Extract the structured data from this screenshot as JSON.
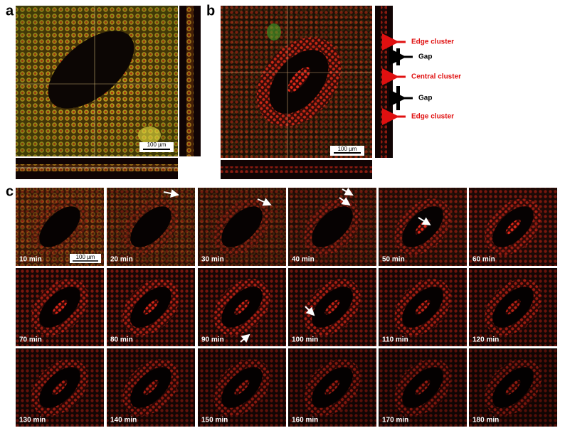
{
  "panels": {
    "a": {
      "label": "a",
      "scale_bar": "100 µm"
    },
    "b": {
      "label": "b",
      "scale_bar": "100 µm",
      "annotations": [
        "Edge cluster",
        "Gap",
        "Central cluster",
        "Gap",
        "Edge cluster"
      ]
    },
    "c": {
      "label": "c",
      "scale_bar": "100 µm",
      "frames": [
        "10 min",
        "20 min",
        "30 min",
        "40 min",
        "50 min",
        "60 min",
        "70 min",
        "80 min",
        "90 min",
        "100 min",
        "110 min",
        "120 min",
        "130 min",
        "140 min",
        "150 min",
        "160 min",
        "170 min",
        "180 min"
      ]
    }
  }
}
